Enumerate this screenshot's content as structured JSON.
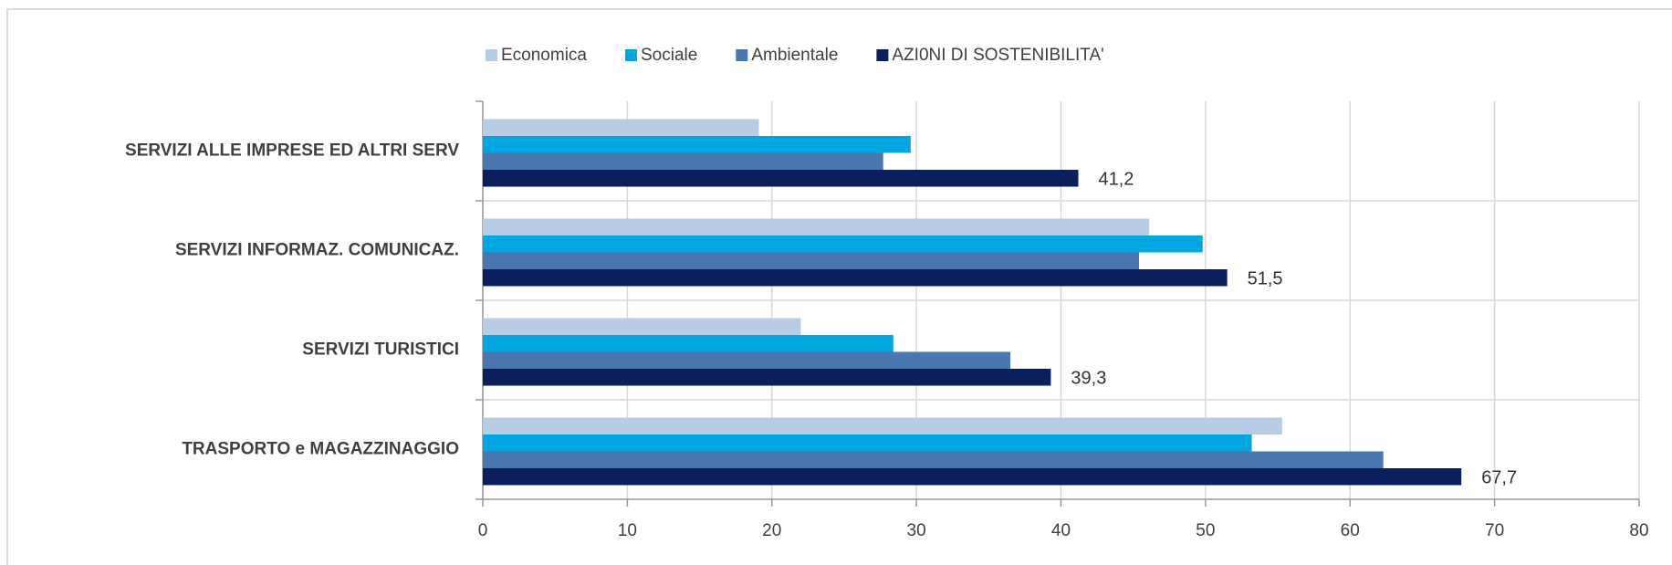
{
  "chart_data": {
    "type": "bar",
    "orientation": "horizontal",
    "categories": [
      "SERVIZI ALLE IMPRESE ED ALTRI SERV",
      "SERVIZI INFORMAZ. COMUNICAZ.",
      "SERVIZI TURISTICI",
      "TRASPORTO e MAGAZZINAGGIO"
    ],
    "series": [
      {
        "name": "Economica",
        "color": "#b8cce4",
        "values": [
          19.1,
          46.1,
          22.0,
          55.3
        ]
      },
      {
        "name": "Sociale",
        "color": "#00a6e0",
        "values": [
          29.6,
          49.8,
          28.4,
          53.2
        ]
      },
      {
        "name": "Ambientale",
        "color": "#4a76b0",
        "values": [
          27.7,
          45.4,
          36.5,
          62.3
        ]
      },
      {
        "name": "AZI0NI DI SOSTENIBILITA'",
        "color": "#0a1f5c",
        "values": [
          41.2,
          51.5,
          39.3,
          67.7
        ],
        "value_labels": [
          "41,2",
          "51,5",
          "39,3",
          "67,7"
        ]
      }
    ],
    "xlim": [
      0,
      80
    ],
    "xticks": [
      0,
      10,
      20,
      30,
      40,
      50,
      60,
      70,
      80
    ],
    "grid": true,
    "legend": "top"
  }
}
